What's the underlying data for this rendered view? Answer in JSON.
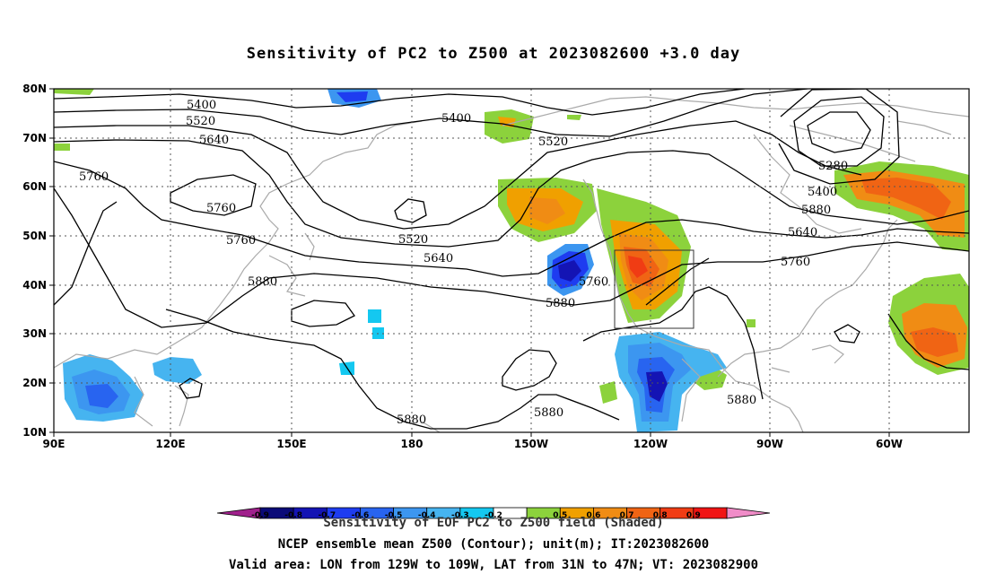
{
  "title": "Sensitivity of PC2 to Z500 at 2023082600 +3.0 day",
  "lat_labels": [
    "80N",
    "70N",
    "60N",
    "50N",
    "40N",
    "30N",
    "20N",
    "10N"
  ],
  "lon_labels": [
    "90E",
    "120E",
    "150E",
    "180",
    "150W",
    "120W",
    "90W",
    "60W"
  ],
  "contour_labels": [
    "5400",
    "5400",
    "5520",
    "5520",
    "5520",
    "5640",
    "5640",
    "5640",
    "5760",
    "5760",
    "5760",
    "5760",
    "5760",
    "5880",
    "5880",
    "5880",
    "5880",
    "5880",
    "5880",
    "5280",
    "5400"
  ],
  "valid_area": {
    "lon_min": "129W",
    "lon_max": "109W",
    "lat_min": "31N",
    "lat_max": "47N"
  },
  "colorbar": {
    "labels": [
      "-0.9",
      "-0.8",
      "-0.7",
      "-0.6",
      "-0.5",
      "-0.4",
      "-0.3",
      "-0.2",
      "0.5",
      "0.6",
      "0.7",
      "0.8",
      "0.9"
    ],
    "colors": {
      "low_ext": "#a0208c",
      "neg": [
        "#0a0a78",
        "#1414b4",
        "#1e3cf0",
        "#2864f0",
        "#3c96f0",
        "#46b4f0",
        "#14c8f0"
      ],
      "zero": "#ffffff",
      "pos": [
        "#8cd23c",
        "#f0a000",
        "#f08c14",
        "#f06414",
        "#f03c14",
        "#f01414"
      ],
      "high_ext": "#f08cc8"
    }
  },
  "captions": {
    "line1": "Sensitivity of EOF PC2 to Z500 field (Shaded)",
    "line2": "NCEP ensemble mean Z500 (Contour); unit(m); IT:2023082600",
    "line3": "Valid area: LON from 129W to 109W, LAT from 31N to 47N; VT: 2023082900"
  }
}
